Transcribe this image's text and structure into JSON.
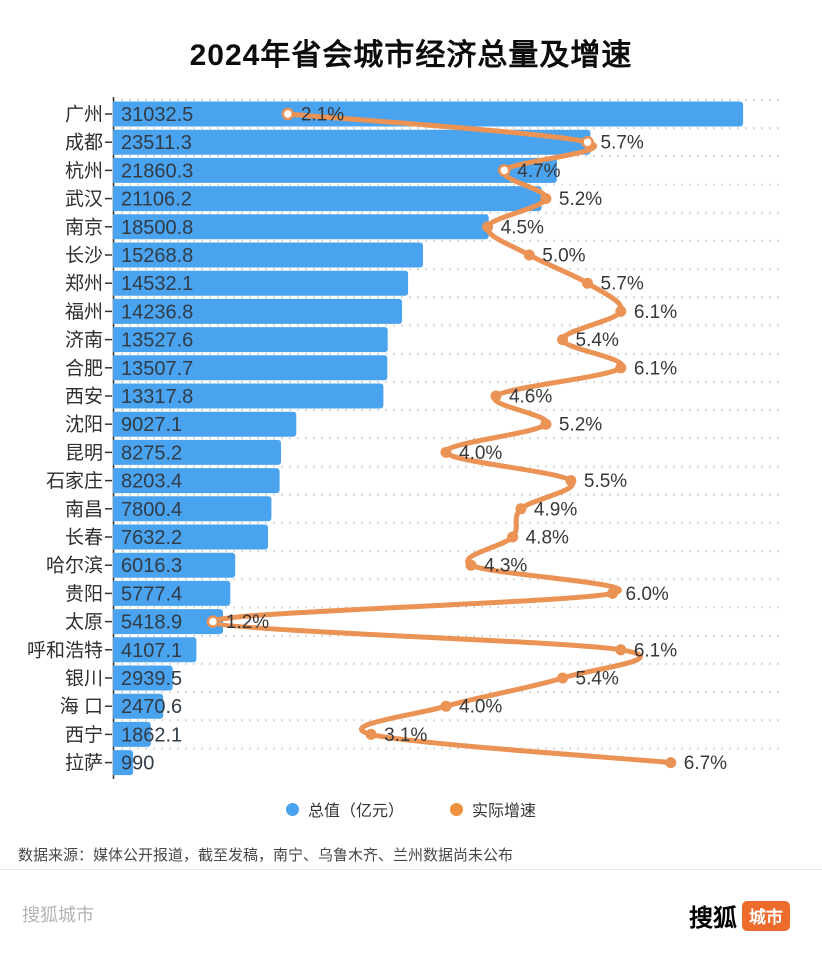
{
  "title": "2024年省会城市经济总量及增速",
  "legend": [
    {
      "label": "总值（亿元）",
      "color": "#4aa3ef"
    },
    {
      "label": "实际增速",
      "color": "#f0913e"
    }
  ],
  "source_note": "数据来源：媒体公开报道，截至发稿，南宁、乌鲁木齐、兰州数据尚未公布",
  "footer": {
    "watermark": "搜狐城市",
    "logo_black": "搜狐",
    "logo_badge": "城市"
  },
  "chart_data": {
    "type": "bar",
    "orientation": "horizontal",
    "title": "2024年省会城市经济总量及增速",
    "grid": "dashed-row-separators",
    "legend_position": "bottom",
    "categories": [
      "广州",
      "成都",
      "杭州",
      "武汉",
      "南京",
      "长沙",
      "郑州",
      "福州",
      "济南",
      "合肥",
      "西安",
      "沈阳",
      "昆明",
      "石家庄",
      "南昌",
      "长春",
      "哈尔滨",
      "贵阳",
      "太原",
      "呼和浩特",
      "银川",
      "海 口",
      "西宁",
      "拉萨"
    ],
    "series": [
      {
        "name": "总值（亿元）",
        "type": "bar",
        "color": "#4aa3ef",
        "values": [
          31032.5,
          23511.3,
          21860.3,
          21106.2,
          18500.8,
          15268.8,
          14532.1,
          14236.8,
          13527.6,
          13507.7,
          13317.8,
          9027.1,
          8275.2,
          8203.4,
          7800.4,
          7632.2,
          6016.3,
          5777.4,
          5418.9,
          4107.1,
          2939.5,
          2470.6,
          1862.1,
          990
        ]
      },
      {
        "name": "实际增速",
        "type": "line",
        "color": "#eb9255",
        "unit": "%",
        "values": [
          2.1,
          5.7,
          4.7,
          5.2,
          4.5,
          5.0,
          5.7,
          6.1,
          5.4,
          6.1,
          4.6,
          5.2,
          4.0,
          5.5,
          4.9,
          4.8,
          4.3,
          6.0,
          1.2,
          6.1,
          5.4,
          4.0,
          3.1,
          6.7
        ]
      }
    ],
    "value_axis": {
      "min": 0,
      "max": 32800
    },
    "pct_axis": {
      "min": 0,
      "max": 8
    },
    "colors": {
      "bar": "#4aa3ef",
      "line": "#eb9255",
      "gridline": "#d9d9d9",
      "axis": "#333333",
      "value_label": "#313c47",
      "category_label": "#2f2f2f",
      "pct_label": "#383838"
    }
  }
}
